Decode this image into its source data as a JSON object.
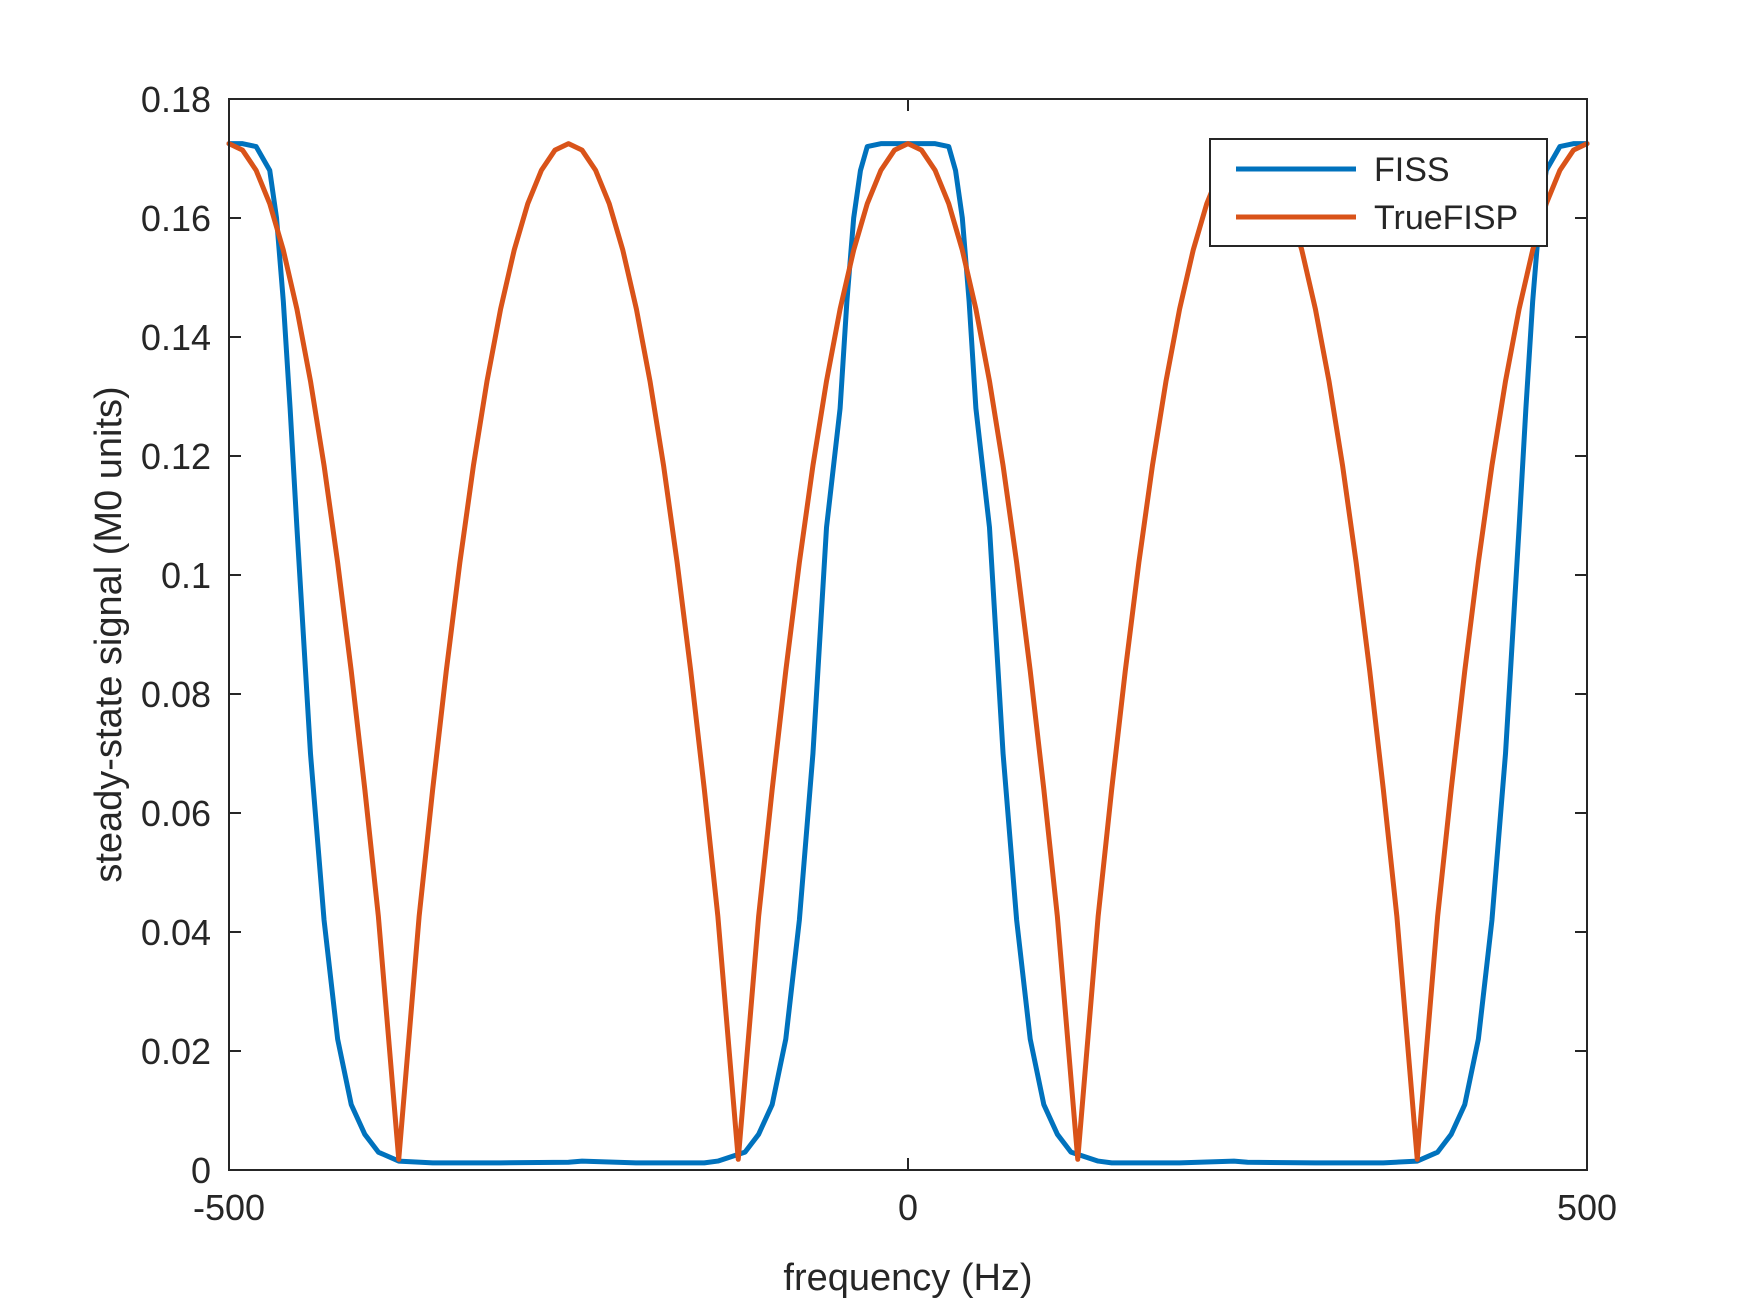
{
  "chart_data": {
    "type": "line",
    "title": "",
    "xlabel": "frequency (Hz)",
    "ylabel": "steady-state signal (M0 units)",
    "xlim": [
      -500,
      500
    ],
    "ylim": [
      0,
      0.18
    ],
    "xticks": [
      -500,
      0,
      500
    ],
    "xtick_labels": [
      "-500",
      "0",
      "500"
    ],
    "yticks": [
      0,
      0.02,
      0.04,
      0.06,
      0.08,
      0.1,
      0.12,
      0.14,
      0.16,
      0.18
    ],
    "ytick_labels": [
      "0",
      "0.02",
      "0.04",
      "0.06",
      "0.08",
      "0.1",
      "0.12",
      "0.14",
      "0.16",
      "0.18"
    ],
    "grid": false,
    "legend": {
      "placement": "top-right"
    },
    "series": [
      {
        "name": "FISS",
        "color": "#0072BD",
        "x": [
          -500,
          -490,
          -480,
          -470,
          -465,
          -460,
          -455,
          -450,
          -440,
          -430,
          -420,
          -410,
          -400,
          -390,
          -375,
          -350,
          -300,
          -250,
          -240,
          -200,
          -150,
          -140,
          -120,
          -110,
          -100,
          -90,
          -80,
          -70,
          -60,
          -50,
          -45,
          -40,
          -35,
          -30,
          -20,
          -10,
          0,
          10,
          20,
          30,
          35,
          40,
          45,
          50,
          60,
          70,
          80,
          90,
          100,
          110,
          120,
          140,
          150,
          200,
          240,
          250,
          300,
          350,
          375,
          390,
          400,
          410,
          420,
          430,
          440,
          450,
          455,
          460,
          465,
          470,
          480,
          490,
          500
        ],
        "y": [
          0.1725,
          0.1725,
          0.172,
          0.168,
          0.16,
          0.146,
          0.128,
          0.108,
          0.07,
          0.042,
          0.022,
          0.011,
          0.006,
          0.003,
          0.0015,
          0.0012,
          0.0012,
          0.0013,
          0.0015,
          0.0012,
          0.0012,
          0.0015,
          0.003,
          0.006,
          0.011,
          0.022,
          0.042,
          0.07,
          0.108,
          0.128,
          0.146,
          0.16,
          0.168,
          0.172,
          0.1725,
          0.1725,
          0.1725,
          0.1725,
          0.1725,
          0.172,
          0.168,
          0.16,
          0.146,
          0.128,
          0.108,
          0.07,
          0.042,
          0.022,
          0.011,
          0.006,
          0.003,
          0.0015,
          0.0012,
          0.0012,
          0.0015,
          0.0013,
          0.0012,
          0.0012,
          0.0015,
          0.003,
          0.006,
          0.011,
          0.022,
          0.042,
          0.07,
          0.108,
          0.128,
          0.146,
          0.16,
          0.168,
          0.172,
          0.1725,
          0.1725
        ]
      },
      {
        "name": "TrueFISP",
        "color": "#D95319",
        "x": [
          -500,
          -490,
          -480,
          -470,
          -460,
          -450,
          -440,
          -430,
          -420,
          -410,
          -400,
          -390,
          -375,
          -360,
          -350,
          -340,
          -330,
          -320,
          -310,
          -300,
          -290,
          -280,
          -270,
          -260,
          -250,
          -240,
          -230,
          -220,
          -210,
          -200,
          -190,
          -180,
          -170,
          -160,
          -150,
          -140,
          -125,
          -110,
          -100,
          -90,
          -80,
          -70,
          -60,
          -50,
          -40,
          -30,
          -20,
          -10,
          0,
          10,
          20,
          30,
          40,
          50,
          60,
          70,
          80,
          90,
          100,
          110,
          125,
          140,
          150,
          160,
          170,
          180,
          190,
          200,
          210,
          220,
          230,
          240,
          250,
          260,
          270,
          280,
          290,
          300,
          310,
          320,
          330,
          340,
          350,
          360,
          375,
          390,
          400,
          410,
          420,
          430,
          440,
          450,
          460,
          470,
          480,
          490,
          500
        ],
        "y": [
          0.1725,
          0.1714,
          0.168,
          0.1624,
          0.1546,
          0.1447,
          0.1326,
          0.1184,
          0.1021,
          0.0839,
          0.064,
          0.0426,
          0.0018,
          0.0426,
          0.064,
          0.0839,
          0.1021,
          0.1184,
          0.1326,
          0.1447,
          0.1546,
          0.1624,
          0.168,
          0.1714,
          0.1725,
          0.1714,
          0.168,
          0.1624,
          0.1546,
          0.1447,
          0.1326,
          0.1184,
          0.1021,
          0.0839,
          0.064,
          0.0426,
          0.0018,
          0.0426,
          0.064,
          0.0839,
          0.1021,
          0.1184,
          0.1326,
          0.1447,
          0.1546,
          0.1624,
          0.168,
          0.1714,
          0.1725,
          0.1714,
          0.168,
          0.1624,
          0.1546,
          0.1447,
          0.1326,
          0.1184,
          0.1021,
          0.0839,
          0.064,
          0.0426,
          0.0018,
          0.0426,
          0.064,
          0.0839,
          0.1021,
          0.1184,
          0.1326,
          0.1447,
          0.1546,
          0.1624,
          0.168,
          0.1714,
          0.1725,
          0.1714,
          0.168,
          0.1624,
          0.1546,
          0.1447,
          0.1326,
          0.1184,
          0.1021,
          0.0839,
          0.064,
          0.0426,
          0.0018,
          0.0426,
          0.064,
          0.0839,
          0.1021,
          0.1184,
          0.1326,
          0.1447,
          0.1546,
          0.1624,
          0.168,
          0.1714,
          0.1725
        ]
      }
    ]
  }
}
